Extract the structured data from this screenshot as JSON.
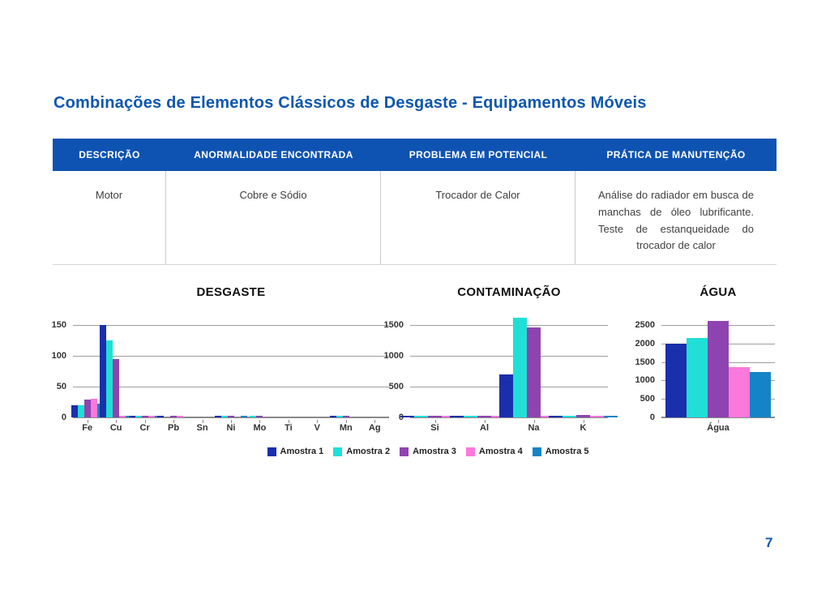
{
  "page": {
    "title": "Combinações de Elementos Clássicos de Desgaste - Equipamentos Móveis",
    "page_number": "7"
  },
  "table": {
    "headers": [
      "DESCRIÇÃO",
      "ANORMALIDADE ENCONTRADA",
      "PROBLEMA EM POTENCIAL",
      "PRÁTICA DE MANUTENÇÃO"
    ],
    "rows": [
      [
        "Motor",
        "Cobre e Sódio",
        "Trocador de Calor",
        "Análise do radiador em busca de manchas de óleo lubrificante. Teste de estanqueidade do trocador de calor"
      ]
    ]
  },
  "legend": {
    "items": [
      "Amostra 1",
      "Amostra 2",
      "Amostra 3",
      "Amostra 4",
      "Amostra 5"
    ]
  },
  "colors": {
    "title_blue": "#0D57AE",
    "table_header_bg": "#0E53B2",
    "grid": "#9E9E9E",
    "axis": "#8A8A8A",
    "series": [
      "#1A2FAB",
      "#20DFD6",
      "#8E44B0",
      "#FB79DA",
      "#1584C6"
    ]
  },
  "chart_data": [
    {
      "type": "bar",
      "title": "DESGASTE",
      "categories": [
        "Fe",
        "Cu",
        "Cr",
        "Pb",
        "Sn",
        "Ni",
        "Mo",
        "Ti",
        "V",
        "Mn",
        "Ag"
      ],
      "series": [
        {
          "name": "Amostra 1",
          "values": [
            20,
            150,
            1,
            1,
            0,
            1,
            0,
            0,
            0,
            1,
            0
          ]
        },
        {
          "name": "Amostra 2",
          "values": [
            20,
            125,
            1,
            0,
            0,
            2,
            2,
            0,
            0,
            2,
            0
          ]
        },
        {
          "name": "Amostra 3",
          "values": [
            29,
            95,
            2,
            2,
            0,
            1,
            2,
            0,
            0,
            2,
            0
          ]
        },
        {
          "name": "Amostra 4",
          "values": [
            30,
            2,
            1,
            1,
            0,
            0,
            0,
            0,
            0,
            0,
            0
          ]
        },
        {
          "name": "Amostra 5",
          "values": [
            22,
            2,
            1,
            0,
            0,
            1,
            0,
            0,
            0,
            0,
            0
          ]
        }
      ],
      "yticks": [
        0,
        50,
        100,
        150
      ],
      "ylim": [
        0,
        150
      ],
      "grid": true,
      "legend_position": "bottom-center"
    },
    {
      "type": "bar",
      "title": "CONTAMINAÇÃO",
      "categories": [
        "Si",
        "Al",
        "Na",
        "K"
      ],
      "series": [
        {
          "name": "Amostra 1",
          "values": [
            10,
            10,
            700,
            10
          ]
        },
        {
          "name": "Amostra 2",
          "values": [
            8,
            10,
            1620,
            20
          ]
        },
        {
          "name": "Amostra 3",
          "values": [
            10,
            8,
            1460,
            35
          ]
        },
        {
          "name": "Amostra 4",
          "values": [
            5,
            5,
            10,
            5
          ]
        },
        {
          "name": "Amostra 5",
          "values": [
            5,
            5,
            25,
            5
          ]
        }
      ],
      "yticks": [
        0,
        500,
        1000,
        1500
      ],
      "ylim": [
        0,
        1500
      ],
      "grid": true,
      "legend_position": "bottom-center"
    },
    {
      "type": "bar",
      "title": "ÁGUA",
      "categories": [
        "Água"
      ],
      "series": [
        {
          "name": "Amostra 1",
          "values": [
            2000
          ]
        },
        {
          "name": "Amostra 2",
          "values": [
            2150
          ]
        },
        {
          "name": "Amostra 3",
          "values": [
            2600
          ]
        },
        {
          "name": "Amostra 4",
          "values": [
            1350
          ]
        },
        {
          "name": "Amostra 5",
          "values": [
            1220
          ]
        }
      ],
      "yticks": [
        0,
        500,
        1000,
        1500,
        2000,
        2500
      ],
      "ylim": [
        0,
        2500
      ],
      "grid": true,
      "legend_position": "bottom-center"
    }
  ]
}
